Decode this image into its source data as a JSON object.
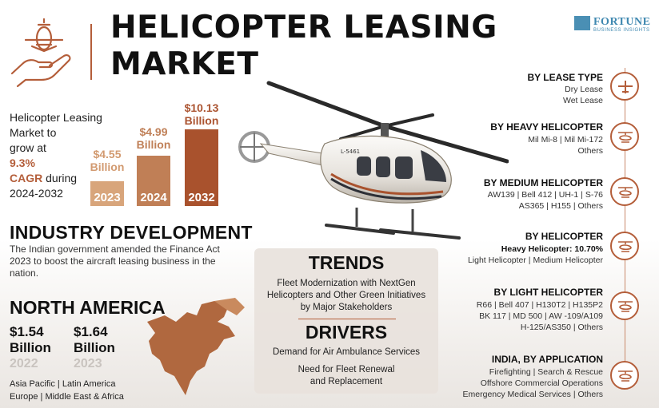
{
  "header": {
    "title_line1": "HELICOPTER LEASING",
    "title_line2": "MARKET",
    "brand_name": "FORTUNE",
    "brand_sub": "BUSINESS INSIGHTS",
    "helicopter_tail_text": "L-5461"
  },
  "growth": {
    "line1": "Helicopter Leasing",
    "line2": "Market to",
    "line3": "grow at",
    "cagr_value": "9.3%",
    "cagr_label": "CAGR",
    "during": "during",
    "period": "2024-2032"
  },
  "bars": [
    {
      "year": "2023",
      "value": "$4.55",
      "unit": "Billion"
    },
    {
      "year": "2024",
      "value": "$4.99",
      "unit": "Billion"
    },
    {
      "year": "2032",
      "value": "$10.13",
      "unit": "Billion"
    }
  ],
  "industry": {
    "heading": "INDUSTRY DEVELOPMENT",
    "text": "The Indian government amended the Finance Act 2023 to boost the aircraft leasing business in the nation."
  },
  "north_america": {
    "heading": "NORTH AMERICA",
    "values": [
      {
        "value": "$1.54",
        "unit": "Billion",
        "year": "2022"
      },
      {
        "value": "$1.64",
        "unit": "Billion",
        "year": "2023"
      }
    ],
    "regions_line1": "Asia Pacific  |  Latin America",
    "regions_line2": "Europe  |  Middle East & Africa"
  },
  "trends": {
    "heading": "TRENDS",
    "text1": "Fleet Modernization with NextGen",
    "text2": "Helicopters and Other Green Initiatives",
    "text3": "by Major Stakeholders"
  },
  "drivers": {
    "heading": "DRIVERS",
    "item1": "Demand for Air Ambulance Services",
    "item2_line1": "Need for Fleet Renewal",
    "item2_line2": "and Replacement"
  },
  "segments": [
    {
      "heading": "BY LEASE TYPE",
      "lines": [
        "Dry Lease",
        "Wet Lease"
      ],
      "icon": "plane-icon"
    },
    {
      "heading": "BY HEAVY HELICOPTER",
      "lines": [
        "Mil Mi-8  |  Mil Mi-172",
        "Others"
      ],
      "icon": "helicopter-icon"
    },
    {
      "heading": "BY MEDIUM HELICOPTER",
      "lines": [
        "AW139  |  Bell 412  |  UH-1  |  S-76",
        "AS365  |  H155  |  Others"
      ],
      "icon": "helicopter-icon"
    },
    {
      "heading": "BY HELICOPTER",
      "lines_bold": "Heavy Helicopter: 10.70%",
      "lines": [
        "Light Helicopter  |  Medium Helicopter"
      ],
      "icon": "helicopter-icon"
    },
    {
      "heading": "BY LIGHT HELICOPTER",
      "lines": [
        "R66  |  Bell 407  |  H130T2  |  H135P2",
        "BK 117  |  MD 500  |  AW -109/A109",
        "H-125/AS350  |  Others"
      ],
      "icon": "helicopter-icon"
    },
    {
      "heading": "INDIA, BY APPLICATION",
      "lines": [
        "Firefighting  |  Search & Rescue",
        "Offshore Commercial Operations",
        "Emergency Medical Services  |  Others"
      ],
      "icon": "helicopter-icon"
    }
  ],
  "colors": {
    "accent": "#b45e3a",
    "bar1": "#d8a57b",
    "bar2": "#c07f56",
    "bar3": "#a9522d",
    "brand": "#3f88b0"
  }
}
